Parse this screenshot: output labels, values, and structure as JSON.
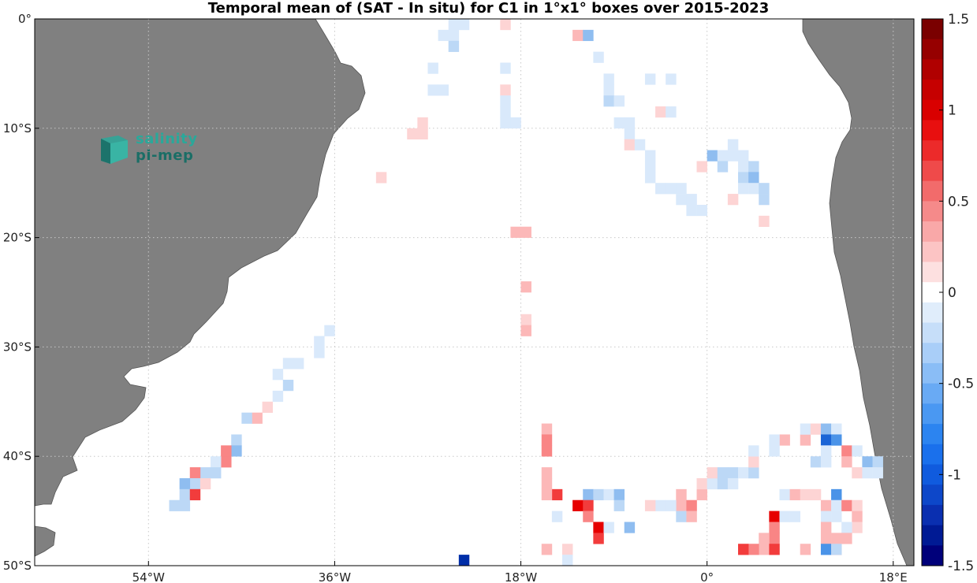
{
  "title": "Temporal mean of (SAT - In situ) for C1 in 1°x1° boxes over 2015-2023",
  "watermark": {
    "line1": "salinity",
    "line2": "pi-mep"
  },
  "colors": {
    "land": "#808080",
    "grid": "#c8c8c8",
    "cell_colors": {
      "p1": "#fdd4d4",
      "p2": "#fcb8b8",
      "p3": "#f98585",
      "p4": "#f23c3c",
      "p5": "#e60000",
      "n1": "#d9e9fb",
      "n2": "#bcd8f6",
      "n3": "#8fbdf0",
      "n4": "#4a93e8",
      "n5": "#1a64d6",
      "n6": "#002ea8"
    }
  },
  "colorbar": {
    "colors": [
      "#00007a",
      "#001a94",
      "#0a2fb0",
      "#0d47c9",
      "#105bde",
      "#1a70ec",
      "#2c84f0",
      "#4a98f2",
      "#69aaf4",
      "#8abdf6",
      "#a9cef8",
      "#c6def9",
      "#e0edfb",
      "#ffffff",
      "#fde0e0",
      "#fcc4c4",
      "#f9a8a8",
      "#f58a8a",
      "#f26b6b",
      "#ef4a4a",
      "#ec2a2a",
      "#e80f0f",
      "#d90000",
      "#c60000",
      "#b00000",
      "#960000",
      "#7a0000"
    ],
    "tick_labels": [
      "1.5",
      "1",
      "0.5",
      "0",
      "-0.5",
      "-1",
      "-1.5"
    ],
    "tick_values": [
      1.5,
      1,
      0.5,
      0,
      -0.5,
      -1,
      -1.5
    ],
    "range": [
      -1.5,
      1.5
    ]
  },
  "map": {
    "extent": {
      "lon": [
        -65,
        20
      ],
      "lat": [
        -50,
        0
      ]
    },
    "lon_ticks": [
      {
        "value": -54,
        "label": "54°W"
      },
      {
        "value": -36,
        "label": "36°W"
      },
      {
        "value": -18,
        "label": "18°W"
      },
      {
        "value": 0,
        "label": "0°"
      },
      {
        "value": 18,
        "label": "18°E"
      }
    ],
    "lat_ticks": [
      {
        "value": 0,
        "label": "0°"
      },
      {
        "value": -10,
        "label": "10°S"
      },
      {
        "value": -20,
        "label": "20°S"
      },
      {
        "value": -30,
        "label": "30°S"
      },
      {
        "value": -40,
        "label": "40°S"
      },
      {
        "value": -50,
        "label": "50°S"
      }
    ],
    "cells": [
      [
        "n1",
        -25,
        -1
      ],
      [
        "n1",
        -24,
        -1
      ],
      [
        "n1",
        -26,
        -2
      ],
      [
        "n1",
        -25,
        -2
      ],
      [
        "n2",
        -25,
        -3
      ],
      [
        "p1",
        -20,
        -1
      ],
      [
        "p2",
        -13,
        -2
      ],
      [
        "n3",
        -12,
        -2
      ],
      [
        "n1",
        -11,
        -4
      ],
      [
        "n1",
        -27,
        -5
      ],
      [
        "n1",
        -20,
        -5
      ],
      [
        "n1",
        -27,
        -7
      ],
      [
        "n1",
        -26,
        -7
      ],
      [
        "p1",
        -20,
        -7
      ],
      [
        "n1",
        -10,
        -6
      ],
      [
        "n1",
        -10,
        -7
      ],
      [
        "n1",
        -6,
        -6
      ],
      [
        "n1",
        -4,
        -6
      ],
      [
        "n1",
        -20,
        -8
      ],
      [
        "n1",
        -20,
        -9
      ],
      [
        "n1",
        -20,
        -10
      ],
      [
        "n1",
        -19,
        -10
      ],
      [
        "n2",
        -10,
        -8
      ],
      [
        "n1",
        -9,
        -8
      ],
      [
        "p1",
        -5,
        -9
      ],
      [
        "n1",
        -4,
        -9
      ],
      [
        "p1",
        -28,
        -10
      ],
      [
        "p1",
        -28,
        -11
      ],
      [
        "p1",
        -29,
        -11
      ],
      [
        "n1",
        -9,
        -10
      ],
      [
        "n1",
        -8,
        -10
      ],
      [
        "n1",
        -8,
        -11
      ],
      [
        "p1",
        -8,
        -12
      ],
      [
        "n1",
        -7,
        -12
      ],
      [
        "n1",
        -6,
        -13
      ],
      [
        "n1",
        -6,
        -14
      ],
      [
        "n1",
        -6,
        -15
      ],
      [
        "n1",
        -5,
        -16
      ],
      [
        "n1",
        -4,
        -16
      ],
      [
        "n1",
        -3,
        -16
      ],
      [
        "n1",
        -3,
        -17
      ],
      [
        "n1",
        -2,
        -17
      ],
      [
        "n1",
        -2,
        -18
      ],
      [
        "n1",
        -1,
        -18
      ],
      [
        "n3",
        0,
        -13
      ],
      [
        "n1",
        1,
        -13
      ],
      [
        "p1",
        -1,
        -14
      ],
      [
        "n2",
        1,
        -14
      ],
      [
        "n1",
        2,
        -12
      ],
      [
        "n1",
        2,
        -13
      ],
      [
        "n1",
        3,
        -13
      ],
      [
        "n1",
        3,
        -14
      ],
      [
        "n2",
        4,
        -14
      ],
      [
        "n2",
        3,
        -15
      ],
      [
        "n3",
        4,
        -15
      ],
      [
        "n1",
        3,
        -16
      ],
      [
        "n1",
        4,
        -16
      ],
      [
        "n2",
        5,
        -16
      ],
      [
        "p1",
        2,
        -17
      ],
      [
        "n2",
        5,
        -17
      ],
      [
        "p1",
        5,
        -19
      ],
      [
        "p1",
        -32,
        -15
      ],
      [
        "p2",
        -19,
        -20
      ],
      [
        "p2",
        -18,
        -20
      ],
      [
        "p2",
        -18,
        -25
      ],
      [
        "p1",
        -18,
        -28
      ],
      [
        "p2",
        -18,
        -29
      ],
      [
        "n1",
        -37,
        -29
      ],
      [
        "n1",
        -38,
        -30
      ],
      [
        "n1",
        -38,
        -31
      ],
      [
        "n1",
        -40,
        -32
      ],
      [
        "n1",
        -41,
        -32
      ],
      [
        "n1",
        -42,
        -33
      ],
      [
        "n2",
        -41,
        -34
      ],
      [
        "n1",
        -42,
        -35
      ],
      [
        "p1",
        -43,
        -36
      ],
      [
        "p2",
        -44,
        -37
      ],
      [
        "n2",
        -45,
        -37
      ],
      [
        "n2",
        -46,
        -39
      ],
      [
        "n3",
        -46,
        -40
      ],
      [
        "p3",
        -47,
        -40
      ],
      [
        "p3",
        -47,
        -41
      ],
      [
        "n1",
        -48,
        -41
      ],
      [
        "n2",
        -48,
        -42
      ],
      [
        "n2",
        -49,
        -42
      ],
      [
        "p3",
        -50,
        -42
      ],
      [
        "n2",
        -50,
        -43
      ],
      [
        "p1",
        -49,
        -43
      ],
      [
        "n3",
        -51,
        -43
      ],
      [
        "n2",
        -51,
        -44
      ],
      [
        "p4",
        -50,
        -44
      ],
      [
        "n2",
        -51,
        -45
      ],
      [
        "n2",
        -52,
        -45
      ],
      [
        "p2",
        -16,
        -38
      ],
      [
        "p3",
        -16,
        -39
      ],
      [
        "p3",
        -16,
        -40
      ],
      [
        "p2",
        -16,
        -42
      ],
      [
        "p2",
        -16,
        -43
      ],
      [
        "p4",
        -15,
        -44
      ],
      [
        "p2",
        -16,
        -44
      ],
      [
        "n1",
        -15,
        -46
      ],
      [
        "n3",
        -12,
        -44
      ],
      [
        "n2",
        -11,
        -44
      ],
      [
        "n1",
        -10,
        -44
      ],
      [
        "n3",
        -9,
        -44
      ],
      [
        "p5",
        -13,
        -45
      ],
      [
        "p4",
        -12,
        -45
      ],
      [
        "n2",
        -9,
        -45
      ],
      [
        "p3",
        -12,
        -46
      ],
      [
        "p5",
        -11,
        -47
      ],
      [
        "p4",
        -11,
        -48
      ],
      [
        "n1",
        -10,
        -47
      ],
      [
        "n3",
        -8,
        -47
      ],
      [
        "p2",
        -3,
        -44
      ],
      [
        "p2",
        -3,
        -45
      ],
      [
        "n1",
        -5,
        -45
      ],
      [
        "n1",
        -4,
        -45
      ],
      [
        "p1",
        -6,
        -45
      ],
      [
        "p3",
        -2,
        -45
      ],
      [
        "n2",
        -3,
        -46
      ],
      [
        "p2",
        -2,
        -46
      ],
      [
        "p2",
        -1,
        -44
      ],
      [
        "p1",
        -1,
        -43
      ],
      [
        "n1",
        0,
        -43
      ],
      [
        "p1",
        0,
        -42
      ],
      [
        "n2",
        1,
        -42
      ],
      [
        "p2",
        -16,
        -49
      ],
      [
        "p1",
        -14,
        -49
      ],
      [
        "n1",
        -14,
        -50
      ],
      [
        "n6",
        -24,
        -50
      ],
      [
        "n2",
        1,
        -43
      ],
      [
        "n2",
        2,
        -42
      ],
      [
        "n1",
        2,
        -43
      ],
      [
        "n1",
        3,
        -42
      ],
      [
        "n2",
        4,
        -42
      ],
      [
        "p1",
        4,
        -41
      ],
      [
        "n1",
        4,
        -40
      ],
      [
        "n1",
        6,
        -40
      ],
      [
        "p2",
        7,
        -39
      ],
      [
        "n1",
        6,
        -39
      ],
      [
        "p2",
        9,
        -39
      ],
      [
        "n1",
        9,
        -38
      ],
      [
        "p1",
        10,
        -38
      ],
      [
        "n3",
        11,
        -38
      ],
      [
        "n1",
        12,
        -38
      ],
      [
        "n5",
        11,
        -39
      ],
      [
        "n4",
        12,
        -39
      ],
      [
        "n1",
        11,
        -40
      ],
      [
        "n2",
        10,
        -41
      ],
      [
        "n1",
        11,
        -41
      ],
      [
        "p3",
        13,
        -40
      ],
      [
        "n1",
        14,
        -40
      ],
      [
        "p2",
        13,
        -41
      ],
      [
        "n3",
        15,
        -41
      ],
      [
        "n2",
        16,
        -41
      ],
      [
        "p1",
        14,
        -42
      ],
      [
        "n1",
        15,
        -42
      ],
      [
        "n1",
        16,
        -42
      ],
      [
        "n1",
        7,
        -44
      ],
      [
        "p2",
        8,
        -44
      ],
      [
        "p1",
        9,
        -44
      ],
      [
        "p1",
        10,
        -44
      ],
      [
        "n4",
        12,
        -44
      ],
      [
        "p2",
        11,
        -45
      ],
      [
        "n1",
        12,
        -45
      ],
      [
        "p3",
        13,
        -45
      ],
      [
        "p1",
        14,
        -45
      ],
      [
        "p2",
        14,
        -46
      ],
      [
        "p1",
        14,
        -47
      ],
      [
        "n1",
        13,
        -47
      ],
      [
        "n1",
        11,
        -46
      ],
      [
        "p2",
        11,
        -47
      ],
      [
        "n1",
        12,
        -46
      ],
      [
        "p5",
        6,
        -46
      ],
      [
        "n1",
        7,
        -46
      ],
      [
        "p3",
        6,
        -47
      ],
      [
        "p3",
        6,
        -48
      ],
      [
        "p2",
        5,
        -48
      ],
      [
        "p2",
        5,
        -49
      ],
      [
        "n1",
        8,
        -46
      ],
      [
        "p3",
        4,
        -49
      ],
      [
        "p4",
        3,
        -49
      ],
      [
        "p4",
        6,
        -49
      ],
      [
        "p2",
        9,
        -49
      ],
      [
        "p2",
        11,
        -48
      ],
      [
        "n4",
        11,
        -49
      ],
      [
        "p3",
        12,
        -49
      ],
      [
        "p2",
        13,
        -48
      ],
      [
        "p2",
        12,
        -48
      ],
      [
        "n2",
        12,
        -49
      ]
    ]
  }
}
